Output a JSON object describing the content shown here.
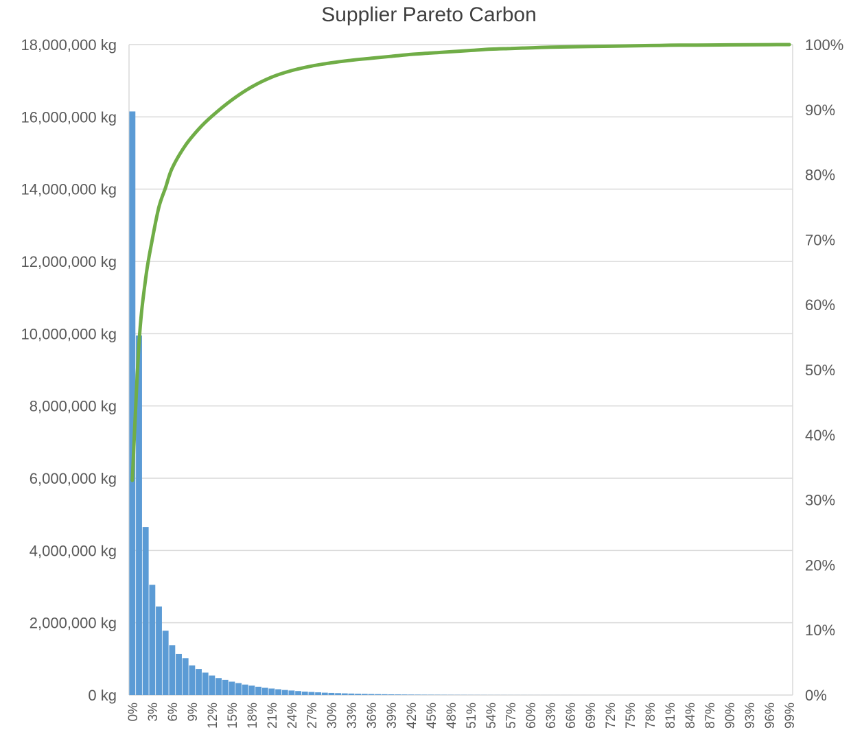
{
  "chart_data": {
    "type": "bar",
    "title": "Supplier Pareto Carbon",
    "xlabel": "",
    "ylabel": "",
    "y_unit": "kg",
    "ylim": [
      0,
      18000000
    ],
    "y2lim": [
      0,
      1.0
    ],
    "grid": true,
    "legend": "none",
    "colors": {
      "bars": "#5b9bd5",
      "cumulative_line": "#70ad47",
      "grid": "#d9d9d9",
      "text": "#595959"
    },
    "y_ticks": [
      "0 kg",
      "2,000,000 kg",
      "4,000,000 kg",
      "6,000,000 kg",
      "8,000,000 kg",
      "10,000,000 kg",
      "12,000,000 kg",
      "14,000,000 kg",
      "16,000,000 kg",
      "18,000,000 kg"
    ],
    "y2_ticks": [
      "0%",
      "10%",
      "20%",
      "30%",
      "40%",
      "50%",
      "60%",
      "70%",
      "80%",
      "90%",
      "100%"
    ],
    "x_ticks": [
      "0%",
      "3%",
      "6%",
      "9%",
      "12%",
      "15%",
      "18%",
      "21%",
      "24%",
      "27%",
      "30%",
      "33%",
      "36%",
      "39%",
      "42%",
      "45%",
      "48%",
      "51%",
      "54%",
      "57%",
      "60%",
      "63%",
      "66%",
      "69%",
      "72%",
      "75%",
      "78%",
      "81%",
      "84%",
      "87%",
      "90%",
      "93%",
      "96%",
      "99%"
    ],
    "series": [
      {
        "type": "bar",
        "values": [
          16150000,
          9950000,
          4650000,
          3050000,
          2450000,
          1780000,
          1380000,
          1140000,
          1020000,
          820000,
          720000,
          620000,
          540000,
          470000,
          420000,
          370000,
          330000,
          290000,
          260000,
          230000,
          200000,
          180000,
          160000,
          140000,
          125000,
          110000,
          95000,
          85000,
          75000,
          65000,
          58000,
          52000,
          46000,
          41000,
          36000,
          32000,
          28000,
          25000,
          22000,
          19000,
          17000,
          15000,
          13000,
          11500,
          10000,
          9000,
          8000,
          7000,
          6200,
          5500,
          4800,
          4200,
          3700,
          3200,
          2800,
          2500,
          2200,
          1900,
          1700,
          1500,
          1300,
          1150,
          1000,
          900,
          800,
          700,
          620,
          550,
          480,
          420,
          370,
          330,
          290,
          250,
          220,
          190,
          170,
          150,
          130,
          110,
          95,
          85,
          75,
          65,
          55,
          48,
          42,
          36,
          30,
          25,
          20,
          16,
          12,
          10,
          8,
          6,
          4,
          3,
          2,
          1
        ]
      },
      {
        "type": "line",
        "x": [
          0,
          1,
          2,
          3,
          4,
          5,
          6,
          8,
          10,
          12,
          15,
          18,
          21,
          24,
          27,
          30,
          33,
          36,
          39,
          42,
          45,
          48,
          51,
          54,
          57,
          60,
          63,
          66,
          69,
          72,
          75,
          78,
          81,
          84,
          87,
          90,
          93,
          96,
          99
        ],
        "values": [
          0.33,
          0.54,
          0.64,
          0.7,
          0.75,
          0.78,
          0.81,
          0.845,
          0.87,
          0.89,
          0.915,
          0.935,
          0.95,
          0.96,
          0.967,
          0.972,
          0.976,
          0.979,
          0.982,
          0.985,
          0.987,
          0.989,
          0.991,
          0.993,
          0.994,
          0.995,
          0.996,
          0.9965,
          0.997,
          0.9975,
          0.998,
          0.9985,
          0.999,
          0.9992,
          0.9994,
          0.9996,
          0.9997,
          0.9999,
          1.0
        ]
      }
    ]
  }
}
